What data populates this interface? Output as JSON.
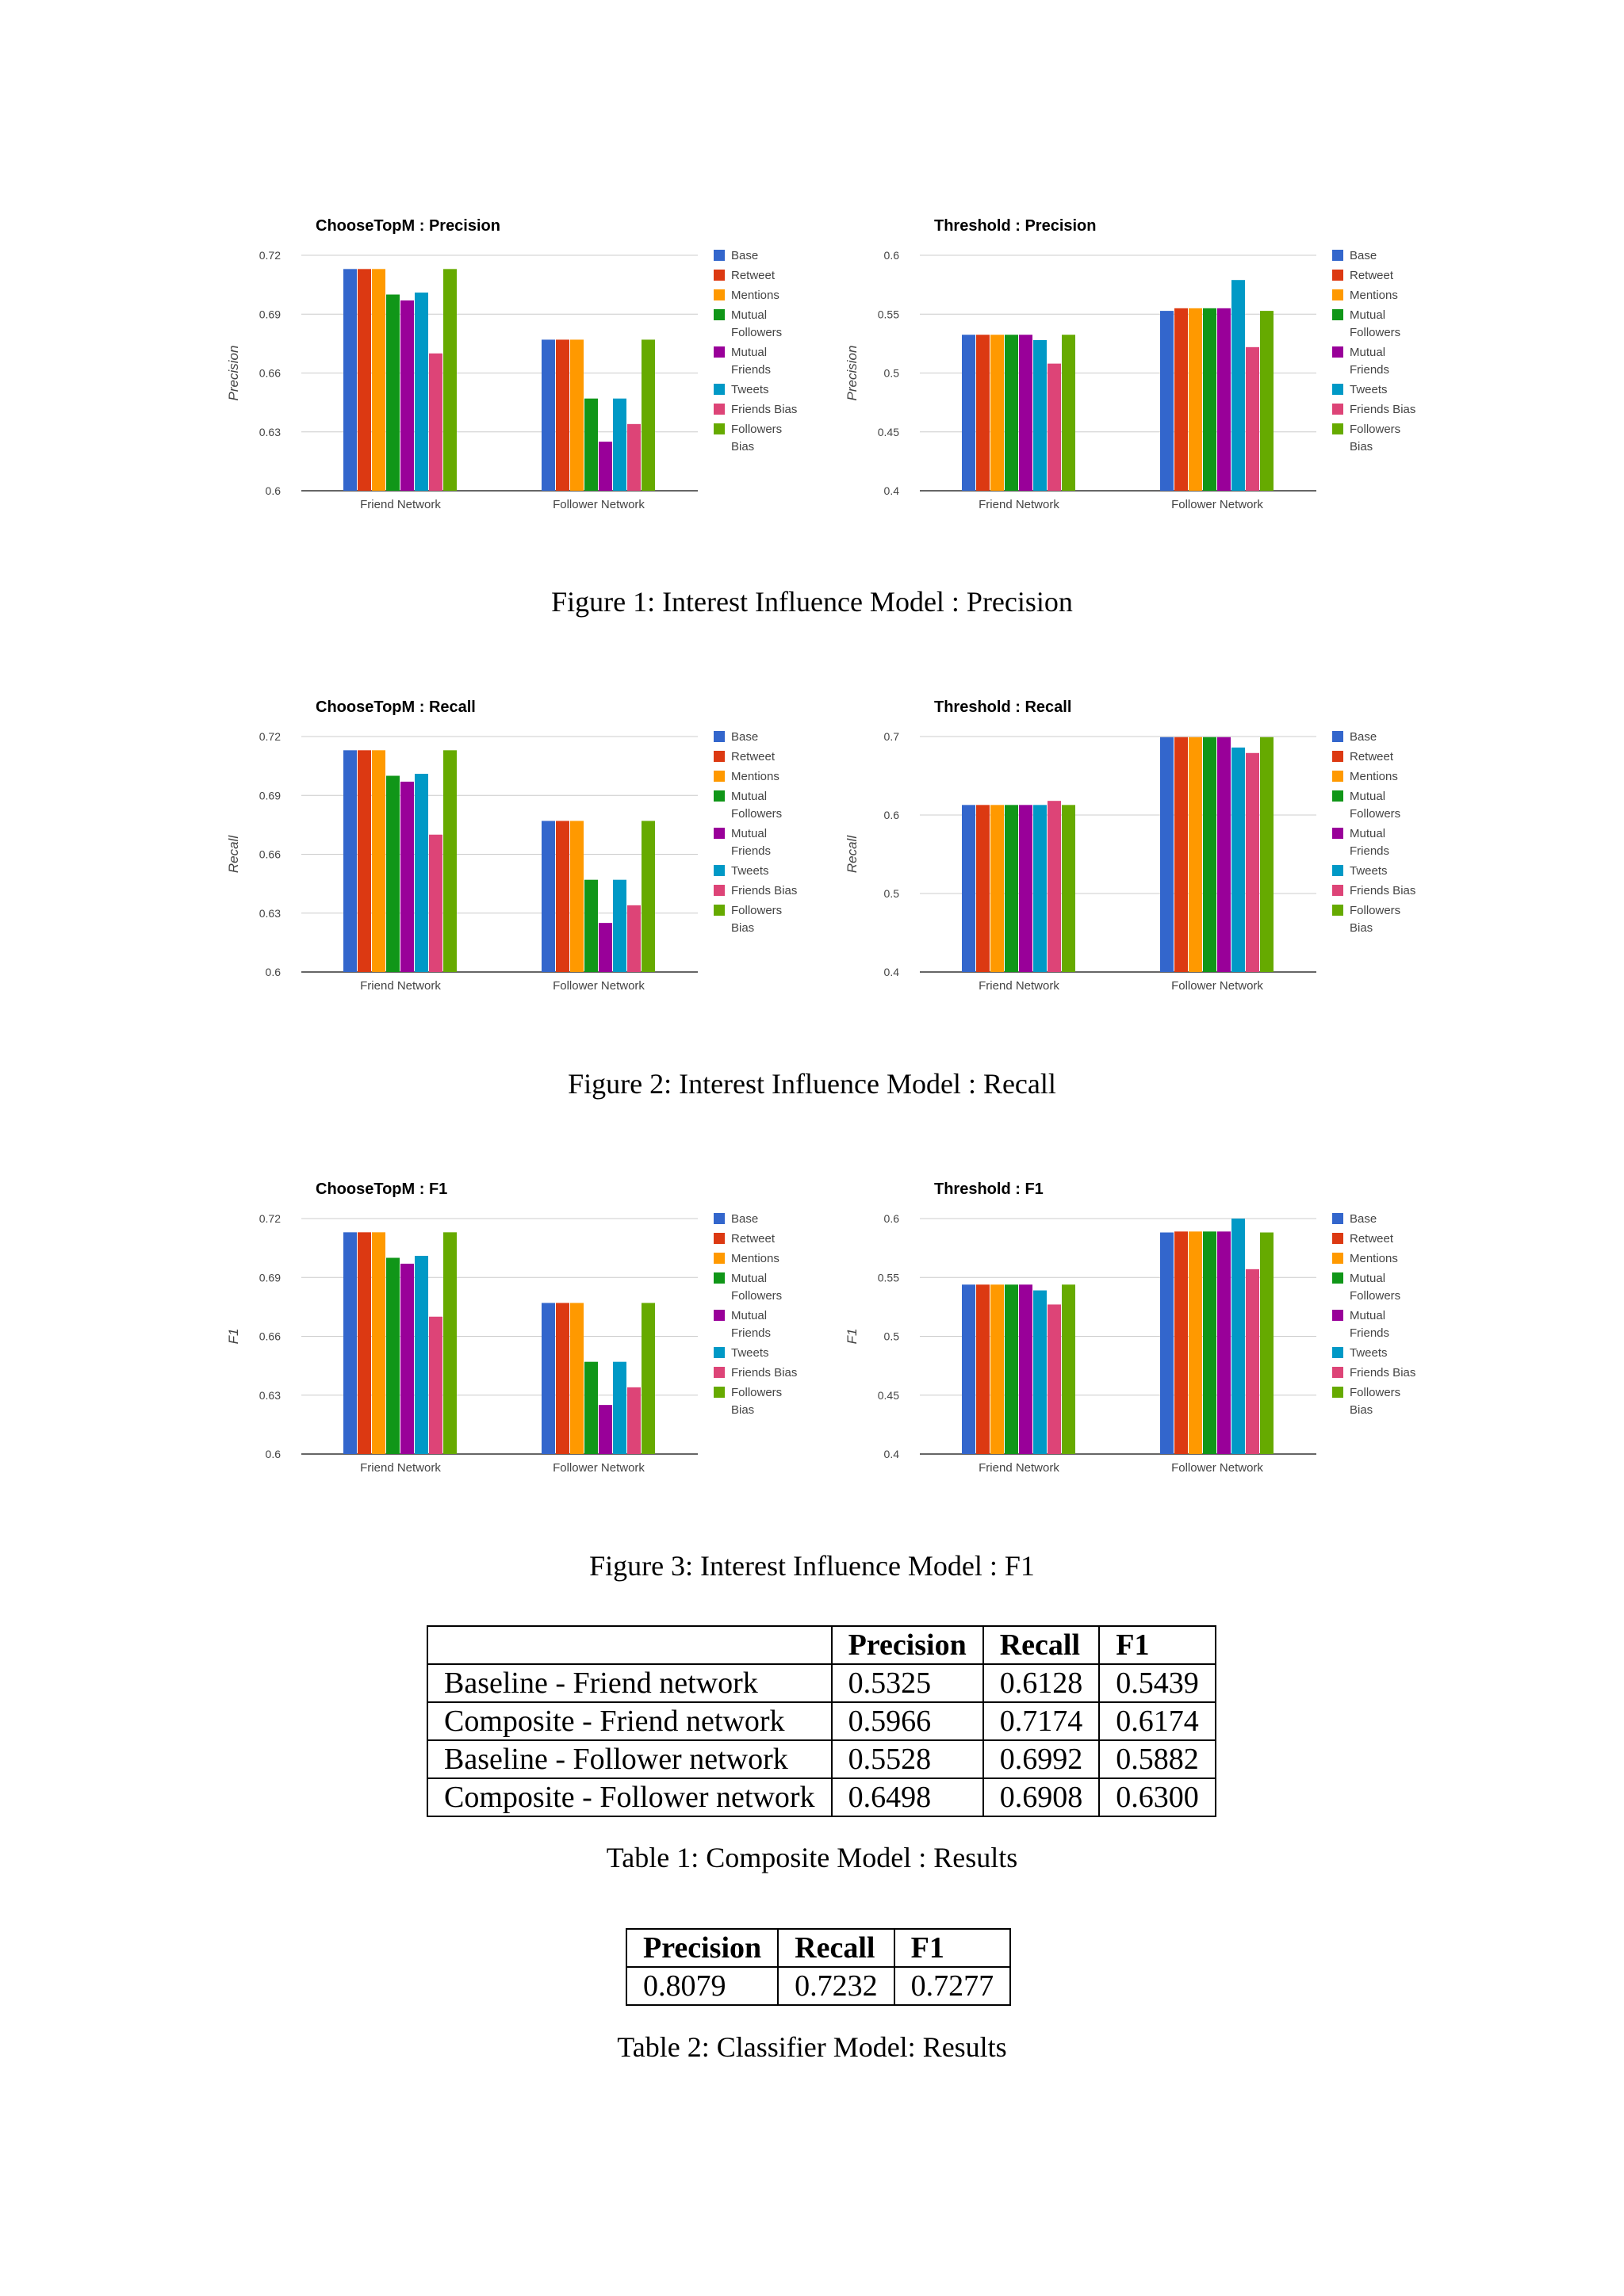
{
  "figures": [
    {
      "caption": "Figure 1: Interest Influence Model : Precision",
      "charts": [
        {
          "type": "bar",
          "title": "ChooseTopM : Precision",
          "ylabel": "Precision",
          "categories": [
            "Friend Network",
            "Follower Network"
          ],
          "ylim": [
            0.6,
            0.72
          ],
          "yticks": [
            "0.6",
            "0.63",
            "0.66",
            "0.69",
            "0.72"
          ],
          "legend_position": "right",
          "series": [
            {
              "name": "Base",
              "color": "#3366cc",
              "values": [
                0.713,
                0.677
              ]
            },
            {
              "name": "Retweet",
              "color": "#dc3912",
              "values": [
                0.713,
                0.677
              ]
            },
            {
              "name": "Mentions",
              "color": "#ff9900",
              "values": [
                0.713,
                0.677
              ]
            },
            {
              "name": "Mutual Followers",
              "color": "#109618",
              "values": [
                0.7,
                0.647
              ]
            },
            {
              "name": "Mutual Friends",
              "color": "#990099",
              "values": [
                0.697,
                0.625
              ]
            },
            {
              "name": "Tweets",
              "color": "#0099c6",
              "values": [
                0.701,
                0.647
              ]
            },
            {
              "name": "Friends Bias",
              "color": "#dd4477",
              "values": [
                0.67,
                0.634
              ]
            },
            {
              "name": "Followers Bias",
              "color": "#66aa00",
              "values": [
                0.713,
                0.677
              ]
            }
          ]
        },
        {
          "type": "bar",
          "title": "Threshold : Precision",
          "ylabel": "Precision",
          "categories": [
            "Friend Network",
            "Follower Network"
          ],
          "ylim": [
            0.4,
            0.6
          ],
          "yticks": [
            "0.4",
            "0.45",
            "0.5",
            "0.55",
            "0.6"
          ],
          "legend_position": "right",
          "series": [
            {
              "name": "Base",
              "color": "#3366cc",
              "values": [
                0.5325,
                0.5528
              ]
            },
            {
              "name": "Retweet",
              "color": "#dc3912",
              "values": [
                0.5325,
                0.555
              ]
            },
            {
              "name": "Mentions",
              "color": "#ff9900",
              "values": [
                0.5325,
                0.555
              ]
            },
            {
              "name": "Mutual Followers",
              "color": "#109618",
              "values": [
                0.5325,
                0.555
              ]
            },
            {
              "name": "Mutual Friends",
              "color": "#990099",
              "values": [
                0.5325,
                0.555
              ]
            },
            {
              "name": "Tweets",
              "color": "#0099c6",
              "values": [
                0.528,
                0.579
              ]
            },
            {
              "name": "Friends Bias",
              "color": "#dd4477",
              "values": [
                0.508,
                0.522
              ]
            },
            {
              "name": "Followers Bias",
              "color": "#66aa00",
              "values": [
                0.5325,
                0.5528
              ]
            }
          ]
        }
      ]
    },
    {
      "caption": "Figure 2: Interest Influence Model : Recall",
      "charts": [
        {
          "type": "bar",
          "title": "ChooseTopM : Recall",
          "ylabel": "Recall",
          "categories": [
            "Friend Network",
            "Follower Network"
          ],
          "ylim": [
            0.6,
            0.72
          ],
          "yticks": [
            "0.6",
            "0.63",
            "0.66",
            "0.69",
            "0.72"
          ],
          "legend_position": "right",
          "series": [
            {
              "name": "Base",
              "color": "#3366cc",
              "values": [
                0.713,
                0.677
              ]
            },
            {
              "name": "Retweet",
              "color": "#dc3912",
              "values": [
                0.713,
                0.677
              ]
            },
            {
              "name": "Mentions",
              "color": "#ff9900",
              "values": [
                0.713,
                0.677
              ]
            },
            {
              "name": "Mutual Followers",
              "color": "#109618",
              "values": [
                0.7,
                0.647
              ]
            },
            {
              "name": "Mutual Friends",
              "color": "#990099",
              "values": [
                0.697,
                0.625
              ]
            },
            {
              "name": "Tweets",
              "color": "#0099c6",
              "values": [
                0.701,
                0.647
              ]
            },
            {
              "name": "Friends Bias",
              "color": "#dd4477",
              "values": [
                0.67,
                0.634
              ]
            },
            {
              "name": "Followers Bias",
              "color": "#66aa00",
              "values": [
                0.713,
                0.677
              ]
            }
          ]
        },
        {
          "type": "bar",
          "title": "Threshold : Recall",
          "ylabel": "Recall",
          "categories": [
            "Friend Network",
            "Follower Network"
          ],
          "ylim": [
            0.4,
            0.7
          ],
          "yticks": [
            "0.4",
            "0.5",
            "0.6",
            "0.7"
          ],
          "legend_position": "right",
          "series": [
            {
              "name": "Base",
              "color": "#3366cc",
              "values": [
                0.6128,
                0.6992
              ]
            },
            {
              "name": "Retweet",
              "color": "#dc3912",
              "values": [
                0.6128,
                0.6992
              ]
            },
            {
              "name": "Mentions",
              "color": "#ff9900",
              "values": [
                0.6128,
                0.6992
              ]
            },
            {
              "name": "Mutual Followers",
              "color": "#109618",
              "values": [
                0.6128,
                0.6992
              ]
            },
            {
              "name": "Mutual Friends",
              "color": "#990099",
              "values": [
                0.6128,
                0.6992
              ]
            },
            {
              "name": "Tweets",
              "color": "#0099c6",
              "values": [
                0.6128,
                0.686
              ]
            },
            {
              "name": "Friends Bias",
              "color": "#dd4477",
              "values": [
                0.618,
                0.679
              ]
            },
            {
              "name": "Followers Bias",
              "color": "#66aa00",
              "values": [
                0.6128,
                0.6992
              ]
            }
          ]
        }
      ]
    },
    {
      "caption": "Figure 3: Interest Influence Model : F1",
      "charts": [
        {
          "type": "bar",
          "title": "ChooseTopM : F1",
          "ylabel": "F1",
          "categories": [
            "Friend Network",
            "Follower Network"
          ],
          "ylim": [
            0.6,
            0.72
          ],
          "yticks": [
            "0.6",
            "0.63",
            "0.66",
            "0.69",
            "0.72"
          ],
          "legend_position": "right",
          "series": [
            {
              "name": "Base",
              "color": "#3366cc",
              "values": [
                0.713,
                0.677
              ]
            },
            {
              "name": "Retweet",
              "color": "#dc3912",
              "values": [
                0.713,
                0.677
              ]
            },
            {
              "name": "Mentions",
              "color": "#ff9900",
              "values": [
                0.713,
                0.677
              ]
            },
            {
              "name": "Mutual Followers",
              "color": "#109618",
              "values": [
                0.7,
                0.647
              ]
            },
            {
              "name": "Mutual Friends",
              "color": "#990099",
              "values": [
                0.697,
                0.625
              ]
            },
            {
              "name": "Tweets",
              "color": "#0099c6",
              "values": [
                0.701,
                0.647
              ]
            },
            {
              "name": "Friends Bias",
              "color": "#dd4477",
              "values": [
                0.67,
                0.634
              ]
            },
            {
              "name": "Followers Bias",
              "color": "#66aa00",
              "values": [
                0.713,
                0.677
              ]
            }
          ]
        },
        {
          "type": "bar",
          "title": "Threshold : F1",
          "ylabel": "F1",
          "categories": [
            "Friend Network",
            "Follower Network"
          ],
          "ylim": [
            0.4,
            0.6
          ],
          "yticks": [
            "0.4",
            "0.45",
            "0.5",
            "0.55",
            "0.6"
          ],
          "legend_position": "right",
          "series": [
            {
              "name": "Base",
              "color": "#3366cc",
              "values": [
                0.5439,
                0.5882
              ]
            },
            {
              "name": "Retweet",
              "color": "#dc3912",
              "values": [
                0.5439,
                0.589
              ]
            },
            {
              "name": "Mentions",
              "color": "#ff9900",
              "values": [
                0.5439,
                0.589
              ]
            },
            {
              "name": "Mutual Followers",
              "color": "#109618",
              "values": [
                0.5439,
                0.589
              ]
            },
            {
              "name": "Mutual Friends",
              "color": "#990099",
              "values": [
                0.5439,
                0.589
              ]
            },
            {
              "name": "Tweets",
              "color": "#0099c6",
              "values": [
                0.539,
                0.6
              ]
            },
            {
              "name": "Friends Bias",
              "color": "#dd4477",
              "values": [
                0.527,
                0.557
              ]
            },
            {
              "name": "Followers Bias",
              "color": "#66aa00",
              "values": [
                0.5439,
                0.5882
              ]
            }
          ]
        }
      ]
    }
  ],
  "table1": {
    "caption": "Table 1: Composite Model : Results",
    "header": [
      "",
      "Precision",
      "Recall",
      "F1"
    ],
    "rows": [
      [
        "Baseline - Friend network",
        "0.5325",
        "0.6128",
        "0.5439"
      ],
      [
        "Composite - Friend network",
        "0.5966",
        "0.7174",
        "0.6174"
      ],
      [
        "Baseline - Follower network",
        "0.5528",
        "0.6992",
        "0.5882"
      ],
      [
        "Composite - Follower network",
        "0.6498",
        "0.6908",
        "0.6300"
      ]
    ]
  },
  "table2": {
    "caption": "Table 2: Classifier Model: Results",
    "header": [
      "Precision",
      "Recall",
      "F1"
    ],
    "rows": [
      [
        "0.8079",
        "0.7232",
        "0.7277"
      ]
    ]
  },
  "chart_data": [
    {
      "ref": "figures.0.charts.0"
    },
    {
      "ref": "figures.0.charts.1"
    },
    {
      "ref": "figures.1.charts.0"
    },
    {
      "ref": "figures.1.charts.1"
    },
    {
      "ref": "figures.2.charts.0"
    },
    {
      "ref": "figures.2.charts.1"
    }
  ]
}
